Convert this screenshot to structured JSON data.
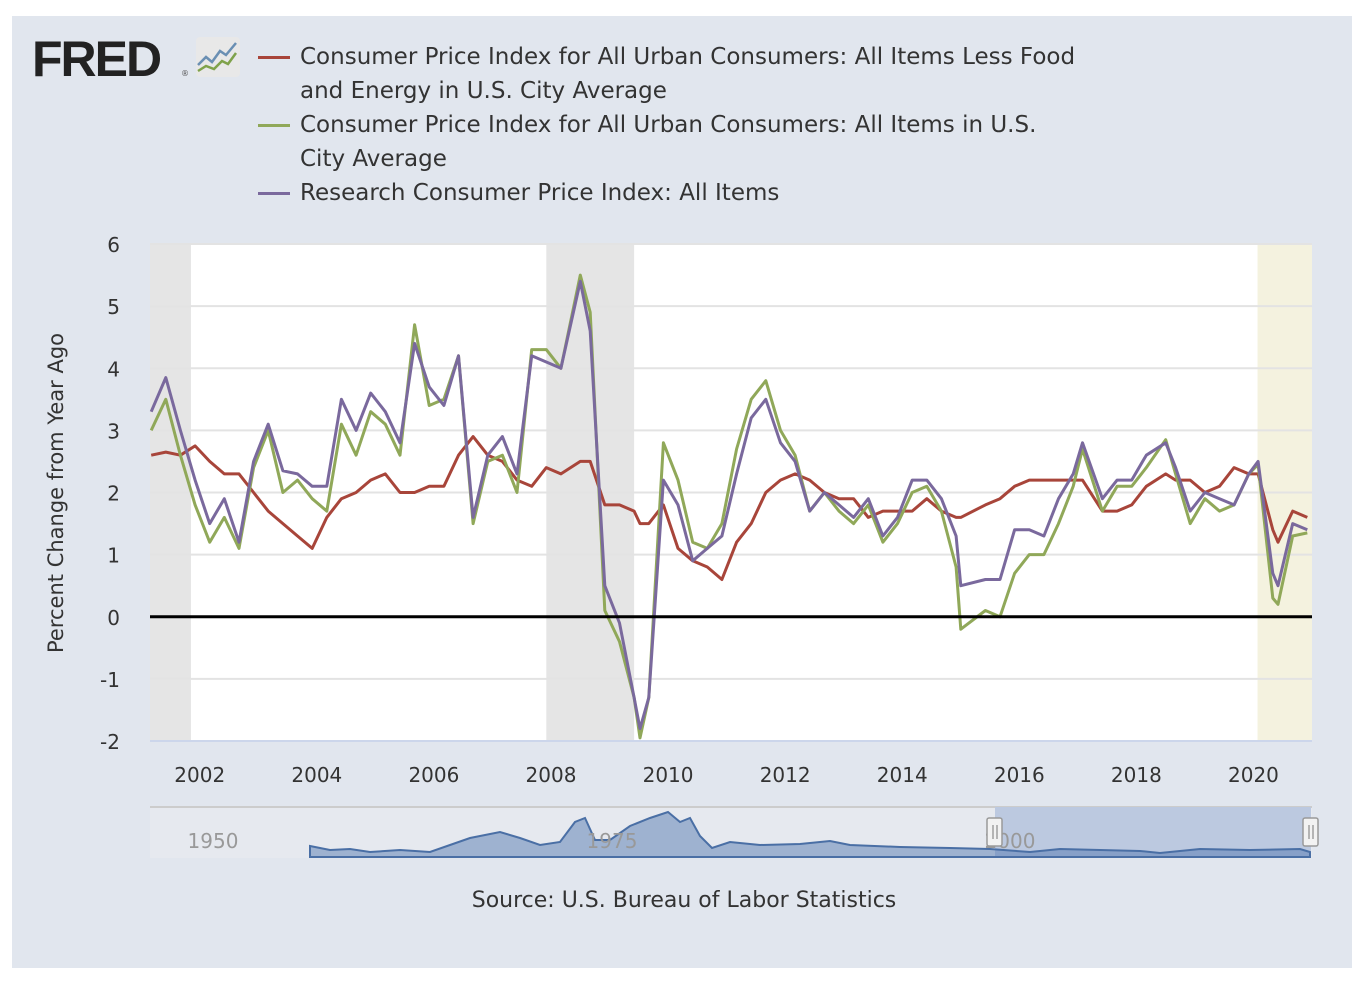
{
  "logo": {
    "text": "FRED",
    "registered": "®"
  },
  "source": "Source: U.S. Bureau of Labor Statistics",
  "navigator": {
    "labels": [
      "1950",
      "1975",
      "2000"
    ]
  },
  "chart_data": {
    "type": "line",
    "title": "",
    "ylabel": "Percent Change from Year Ago",
    "xlabel": "",
    "ylim": [
      -2,
      6
    ],
    "xlim": [
      2001.15,
      2021.0
    ],
    "yticks": [
      "6",
      "5",
      "4",
      "3",
      "2",
      "1",
      "0",
      "-1",
      "-2"
    ],
    "xticks": [
      "2002",
      "2004",
      "2006",
      "2008",
      "2010",
      "2012",
      "2014",
      "2016",
      "2018",
      "2020"
    ],
    "grid": true,
    "legend_position": "top",
    "recessions": [
      [
        2001.15,
        2001.85
      ],
      [
        2007.92,
        2009.42
      ]
    ],
    "highlight": [
      [
        2020.07,
        2021.0
      ]
    ],
    "x": [
      2001.17,
      2001.42,
      2001.67,
      2001.92,
      2002.17,
      2002.42,
      2002.67,
      2002.92,
      2003.17,
      2003.42,
      2003.67,
      2003.92,
      2004.17,
      2004.42,
      2004.67,
      2004.92,
      2005.17,
      2005.42,
      2005.67,
      2005.92,
      2006.17,
      2006.42,
      2006.67,
      2006.92,
      2007.17,
      2007.42,
      2007.67,
      2007.92,
      2008.17,
      2008.5,
      2008.67,
      2008.92,
      2009.17,
      2009.42,
      2009.52,
      2009.67,
      2009.92,
      2010.17,
      2010.42,
      2010.67,
      2010.92,
      2011.17,
      2011.42,
      2011.67,
      2011.92,
      2012.17,
      2012.42,
      2012.67,
      2012.92,
      2013.17,
      2013.42,
      2013.67,
      2013.92,
      2014.17,
      2014.42,
      2014.67,
      2014.92,
      2015.0,
      2015.42,
      2015.67,
      2015.92,
      2016.17,
      2016.42,
      2016.67,
      2016.92,
      2017.08,
      2017.42,
      2017.67,
      2017.92,
      2018.17,
      2018.5,
      2018.67,
      2018.92,
      2019.17,
      2019.42,
      2019.67,
      2019.92,
      2020.08,
      2020.33,
      2020.42,
      2020.67,
      2020.92
    ],
    "series": [
      {
        "name": "Consumer Price Index for All Urban Consumers: All Items Less Food and Energy in U.S. City Average",
        "color": "#a8453a",
        "values": [
          2.6,
          2.65,
          2.6,
          2.75,
          2.5,
          2.3,
          2.3,
          2.0,
          1.7,
          1.5,
          1.3,
          1.1,
          1.6,
          1.9,
          2.0,
          2.2,
          2.3,
          2.0,
          2.0,
          2.1,
          2.1,
          2.6,
          2.9,
          2.6,
          2.5,
          2.2,
          2.1,
          2.4,
          2.3,
          2.5,
          2.5,
          1.8,
          1.8,
          1.7,
          1.5,
          1.5,
          1.8,
          1.1,
          0.9,
          0.8,
          0.6,
          1.2,
          1.5,
          2.0,
          2.2,
          2.3,
          2.2,
          2.0,
          1.9,
          1.9,
          1.6,
          1.7,
          1.7,
          1.7,
          1.9,
          1.7,
          1.6,
          1.6,
          1.8,
          1.9,
          2.1,
          2.2,
          2.2,
          2.2,
          2.2,
          2.2,
          1.7,
          1.7,
          1.8,
          2.1,
          2.3,
          2.2,
          2.2,
          2.0,
          2.1,
          2.4,
          2.3,
          2.3,
          1.4,
          1.2,
          1.7,
          1.6
        ]
      },
      {
        "name": "Consumer Price Index for All Urban Consumers: All Items in U.S. City Average",
        "color": "#90a859",
        "values": [
          3.0,
          3.5,
          2.6,
          1.8,
          1.2,
          1.6,
          1.1,
          2.4,
          3.0,
          2.0,
          2.2,
          1.9,
          1.7,
          3.1,
          2.6,
          3.3,
          3.1,
          2.6,
          4.7,
          3.4,
          3.5,
          4.2,
          1.5,
          2.5,
          2.6,
          2.0,
          4.3,
          4.3,
          4.0,
          5.5,
          4.9,
          0.1,
          -0.4,
          -1.3,
          -1.95,
          -1.3,
          2.8,
          2.2,
          1.2,
          1.1,
          1.5,
          2.7,
          3.5,
          3.8,
          3.0,
          2.6,
          1.7,
          2.0,
          1.7,
          1.5,
          1.8,
          1.2,
          1.5,
          2.0,
          2.1,
          1.7,
          0.8,
          -0.2,
          0.1,
          0.0,
          0.7,
          1.0,
          1.0,
          1.5,
          2.1,
          2.7,
          1.7,
          2.1,
          2.1,
          2.4,
          2.85,
          2.3,
          1.5,
          1.9,
          1.7,
          1.8,
          2.3,
          2.45,
          0.3,
          0.2,
          1.3,
          1.35
        ]
      },
      {
        "name": "Research Consumer Price Index: All Items",
        "color": "#7a699d",
        "values": [
          3.3,
          3.85,
          3.0,
          2.2,
          1.5,
          1.9,
          1.2,
          2.5,
          3.1,
          2.35,
          2.3,
          2.1,
          2.1,
          3.5,
          3.0,
          3.6,
          3.3,
          2.8,
          4.4,
          3.7,
          3.4,
          4.2,
          1.6,
          2.6,
          2.9,
          2.3,
          4.2,
          4.1,
          4.0,
          5.4,
          4.6,
          0.5,
          -0.1,
          -1.3,
          -1.8,
          -1.3,
          2.2,
          1.8,
          0.9,
          1.1,
          1.3,
          2.3,
          3.2,
          3.5,
          2.8,
          2.5,
          1.7,
          2.0,
          1.8,
          1.6,
          1.9,
          1.3,
          1.6,
          2.2,
          2.2,
          1.9,
          1.3,
          0.5,
          0.6,
          0.6,
          1.4,
          1.4,
          1.3,
          1.9,
          2.3,
          2.8,
          1.9,
          2.2,
          2.2,
          2.6,
          2.8,
          2.4,
          1.7,
          2.0,
          1.9,
          1.8,
          2.3,
          2.5,
          0.7,
          0.5,
          1.5,
          1.4
        ]
      }
    ]
  }
}
